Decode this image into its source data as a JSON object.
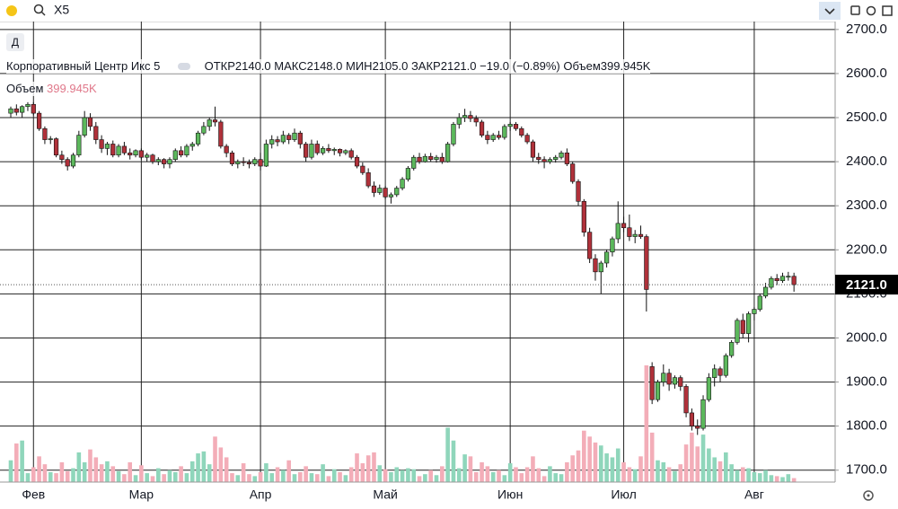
{
  "toolbar": {
    "symbol": "X5",
    "button": "Д"
  },
  "legend": {
    "name": "Корпоративный Центр Икс 5",
    "items": [
      {
        "label": "ОТКР",
        "value": "2140.0"
      },
      {
        "label": "МАКС",
        "value": "2148.0"
      },
      {
        "label": "МИН",
        "value": "2105.0"
      },
      {
        "label": "ЗАКР",
        "value": "2121.0"
      }
    ],
    "change": "−19.0 (−0.89%)",
    "volume_label": "Объем",
    "volume_value": "399.945K"
  },
  "chart_data": {
    "type": "candlestick",
    "categories": [
      null,
      null,
      null,
      null,
      "Фев",
      null,
      null,
      null,
      null,
      null,
      null,
      null,
      null,
      null,
      null,
      null,
      null,
      null,
      null,
      null,
      null,
      null,
      null,
      "Мар",
      null,
      null,
      null,
      null,
      null,
      null,
      null,
      null,
      null,
      null,
      null,
      null,
      null,
      null,
      null,
      null,
      null,
      null,
      null,
      null,
      "Апр",
      null,
      null,
      null,
      null,
      null,
      null,
      null,
      null,
      null,
      null,
      null,
      null,
      null,
      null,
      null,
      null,
      null,
      null,
      null,
      null,
      null,
      "Май",
      null,
      null,
      null,
      null,
      null,
      null,
      null,
      null,
      null,
      null,
      null,
      null,
      null,
      null,
      null,
      null,
      null,
      null,
      null,
      null,
      null,
      "Июн",
      null,
      null,
      null,
      null,
      null,
      null,
      null,
      null,
      null,
      null,
      null,
      null,
      null,
      null,
      null,
      null,
      null,
      null,
      null,
      "Июл",
      null,
      null,
      null,
      null,
      null,
      null,
      null,
      null,
      null,
      null,
      null,
      null,
      null,
      null,
      null,
      null,
      null,
      null,
      null,
      null,
      null,
      null,
      "Авг",
      null,
      null,
      null,
      null,
      null,
      null,
      null
    ],
    "ohlc": [
      [
        2510,
        2525,
        2500,
        2520
      ],
      [
        2520,
        2530,
        2505,
        2512
      ],
      [
        2512,
        2528,
        2500,
        2525
      ],
      [
        2525,
        2535,
        2515,
        2530
      ],
      [
        2530,
        2535,
        2505,
        2510
      ],
      [
        2510,
        2515,
        2470,
        2475
      ],
      [
        2475,
        2480,
        2440,
        2450
      ],
      [
        2450,
        2458,
        2440,
        2452
      ],
      [
        2452,
        2455,
        2410,
        2415
      ],
      [
        2415,
        2425,
        2395,
        2405
      ],
      [
        2405,
        2410,
        2380,
        2390
      ],
      [
        2390,
        2420,
        2385,
        2415
      ],
      [
        2415,
        2470,
        2410,
        2460
      ],
      [
        2460,
        2515,
        2455,
        2500
      ],
      [
        2500,
        2510,
        2470,
        2480
      ],
      [
        2480,
        2490,
        2440,
        2450
      ],
      [
        2450,
        2460,
        2420,
        2430
      ],
      [
        2430,
        2445,
        2415,
        2440
      ],
      [
        2440,
        2448,
        2410,
        2415
      ],
      [
        2415,
        2440,
        2410,
        2435
      ],
      [
        2435,
        2445,
        2415,
        2420
      ],
      [
        2420,
        2430,
        2405,
        2415
      ],
      [
        2415,
        2428,
        2410,
        2425
      ],
      [
        2425,
        2430,
        2405,
        2410
      ],
      [
        2410,
        2420,
        2400,
        2415
      ],
      [
        2415,
        2418,
        2395,
        2400
      ],
      [
        2400,
        2410,
        2392,
        2405
      ],
      [
        2405,
        2408,
        2385,
        2395
      ],
      [
        2395,
        2410,
        2385,
        2405
      ],
      [
        2405,
        2430,
        2400,
        2425
      ],
      [
        2425,
        2435,
        2410,
        2415
      ],
      [
        2415,
        2440,
        2410,
        2435
      ],
      [
        2435,
        2445,
        2425,
        2440
      ],
      [
        2440,
        2470,
        2435,
        2465
      ],
      [
        2465,
        2490,
        2460,
        2480
      ],
      [
        2480,
        2500,
        2470,
        2495
      ],
      [
        2495,
        2525,
        2480,
        2490
      ],
      [
        2490,
        2495,
        2430,
        2435
      ],
      [
        2435,
        2440,
        2410,
        2420
      ],
      [
        2420,
        2425,
        2390,
        2395
      ],
      [
        2395,
        2405,
        2385,
        2400
      ],
      [
        2400,
        2410,
        2390,
        2398
      ],
      [
        2398,
        2405,
        2385,
        2395
      ],
      [
        2395,
        2410,
        2390,
        2405
      ],
      [
        2405,
        2420,
        2380,
        2390
      ],
      [
        2390,
        2450,
        2388,
        2440
      ],
      [
        2440,
        2460,
        2430,
        2450
      ],
      [
        2450,
        2458,
        2435,
        2445
      ],
      [
        2445,
        2470,
        2440,
        2460
      ],
      [
        2460,
        2465,
        2440,
        2450
      ],
      [
        2450,
        2475,
        2445,
        2465
      ],
      [
        2465,
        2470,
        2430,
        2440
      ],
      [
        2440,
        2445,
        2400,
        2410
      ],
      [
        2410,
        2450,
        2405,
        2440
      ],
      [
        2440,
        2448,
        2415,
        2420
      ],
      [
        2420,
        2435,
        2415,
        2430
      ],
      [
        2430,
        2440,
        2420,
        2425
      ],
      [
        2425,
        2432,
        2415,
        2428
      ],
      [
        2428,
        2430,
        2412,
        2420
      ],
      [
        2420,
        2428,
        2415,
        2425
      ],
      [
        2425,
        2430,
        2405,
        2410
      ],
      [
        2410,
        2415,
        2385,
        2390
      ],
      [
        2390,
        2398,
        2370,
        2375
      ],
      [
        2375,
        2385,
        2340,
        2345
      ],
      [
        2345,
        2355,
        2320,
        2330
      ],
      [
        2330,
        2348,
        2325,
        2340
      ],
      [
        2340,
        2345,
        2315,
        2320
      ],
      [
        2320,
        2330,
        2305,
        2325
      ],
      [
        2325,
        2345,
        2320,
        2340
      ],
      [
        2340,
        2365,
        2335,
        2360
      ],
      [
        2360,
        2390,
        2355,
        2385
      ],
      [
        2385,
        2415,
        2380,
        2410
      ],
      [
        2410,
        2420,
        2395,
        2400
      ],
      [
        2400,
        2418,
        2398,
        2412
      ],
      [
        2412,
        2420,
        2400,
        2405
      ],
      [
        2405,
        2415,
        2398,
        2410
      ],
      [
        2410,
        2420,
        2395,
        2400
      ],
      [
        2400,
        2445,
        2398,
        2440
      ],
      [
        2440,
        2490,
        2435,
        2485
      ],
      [
        2485,
        2510,
        2475,
        2500
      ],
      [
        2500,
        2520,
        2490,
        2505
      ],
      [
        2505,
        2515,
        2490,
        2498
      ],
      [
        2498,
        2505,
        2480,
        2490
      ],
      [
        2490,
        2495,
        2455,
        2460
      ],
      [
        2460,
        2470,
        2440,
        2450
      ],
      [
        2450,
        2465,
        2445,
        2460
      ],
      [
        2460,
        2470,
        2450,
        2455
      ],
      [
        2455,
        2485,
        2450,
        2480
      ],
      [
        2480,
        2490,
        2470,
        2485
      ],
      [
        2485,
        2490,
        2470,
        2475
      ],
      [
        2475,
        2480,
        2455,
        2460
      ],
      [
        2460,
        2465,
        2440,
        2445
      ],
      [
        2445,
        2450,
        2400,
        2410
      ],
      [
        2410,
        2420,
        2395,
        2405
      ],
      [
        2405,
        2412,
        2385,
        2400
      ],
      [
        2400,
        2410,
        2395,
        2405
      ],
      [
        2405,
        2415,
        2398,
        2410
      ],
      [
        2410,
        2425,
        2405,
        2420
      ],
      [
        2420,
        2430,
        2390,
        2395
      ],
      [
        2395,
        2400,
        2350,
        2355
      ],
      [
        2355,
        2360,
        2300,
        2310
      ],
      [
        2310,
        2315,
        2230,
        2240
      ],
      [
        2240,
        2250,
        2170,
        2180
      ],
      [
        2180,
        2190,
        2130,
        2150
      ],
      [
        2150,
        2175,
        2100,
        2170
      ],
      [
        2170,
        2200,
        2160,
        2195
      ],
      [
        2195,
        2230,
        2185,
        2225
      ],
      [
        2225,
        2310,
        2215,
        2260
      ],
      [
        2260,
        2275,
        2240,
        2250
      ],
      [
        2250,
        2280,
        2220,
        2230
      ],
      [
        2230,
        2245,
        2215,
        2235
      ],
      [
        2235,
        2255,
        2225,
        2230
      ],
      [
        2230,
        2235,
        2060,
        2110
      ],
      [
        1935,
        1945,
        1850,
        1860
      ],
      [
        1860,
        1905,
        1855,
        1900
      ],
      [
        1900,
        1940,
        1890,
        1920
      ],
      [
        1920,
        1930,
        1880,
        1895
      ],
      [
        1895,
        1915,
        1885,
        1910
      ],
      [
        1910,
        1915,
        1880,
        1890
      ],
      [
        1890,
        1895,
        1820,
        1830
      ],
      [
        1830,
        1840,
        1790,
        1800
      ],
      [
        1800,
        1815,
        1780,
        1795
      ],
      [
        1795,
        1870,
        1790,
        1860
      ],
      [
        1860,
        1920,
        1855,
        1910
      ],
      [
        1910,
        1940,
        1890,
        1930
      ],
      [
        1930,
        1935,
        1900,
        1915
      ],
      [
        1915,
        1965,
        1910,
        1960
      ],
      [
        1960,
        1995,
        1955,
        1990
      ],
      [
        1990,
        2045,
        1985,
        2040
      ],
      [
        2040,
        2055,
        2000,
        2010
      ],
      [
        2010,
        2060,
        1990,
        2055
      ],
      [
        2055,
        2070,
        2040,
        2065
      ],
      [
        2065,
        2100,
        2060,
        2095
      ],
      [
        2095,
        2125,
        2090,
        2115
      ],
      [
        2115,
        2140,
        2110,
        2135
      ],
      [
        2135,
        2145,
        2120,
        2130
      ],
      [
        2130,
        2148,
        2125,
        2140
      ],
      [
        2140,
        2150,
        2130,
        2140
      ],
      [
        2140,
        2148,
        2105,
        2121
      ]
    ],
    "volume": [
      2200,
      3900,
      4200,
      900,
      1500,
      2600,
      1800,
      1000,
      900,
      2000,
      1100,
      1400,
      3000,
      2000,
      3300,
      2500,
      1800,
      2100,
      1600,
      1100,
      800,
      2000,
      700,
      1700,
      900,
      600,
      1400,
      800,
      1200,
      1000,
      1600,
      900,
      2100,
      2900,
      3100,
      1800,
      4600,
      3500,
      2500,
      900,
      700,
      1900,
      800,
      600,
      1000,
      1900,
      900,
      1500,
      1200,
      2200,
      800,
      1000,
      1600,
      900,
      800,
      1800,
      600,
      1300,
      1000,
      700,
      1500,
      2900,
      1900,
      2700,
      3000,
      1700,
      1300,
      1000,
      1500,
      1200,
      1400,
      1300,
      600,
      800,
      1200,
      700,
      1600,
      5500,
      4200,
      1400,
      2800,
      2600,
      1000,
      2000,
      1600,
      1000,
      1200,
      700,
      1900,
      1500,
      900,
      1500,
      2600,
      1400,
      600,
      1600,
      900,
      800,
      2000,
      2700,
      3200,
      5200,
      4600,
      4000,
      3700,
      2900,
      2500,
      3400,
      2000,
      1500,
      1300,
      2600,
      11800,
      5000,
      2200,
      2000,
      1500,
      1100,
      1800,
      3800,
      5000,
      3600,
      4800,
      3400,
      2500,
      2100,
      3000,
      1800,
      1200,
      1500,
      1400,
      1000,
      900,
      1200,
      700,
      600,
      500,
      800,
      399.945
    ],
    "up_color": "#5cb85c",
    "down_color": "#b0313a",
    "up_volume_color": "#8fd6bb",
    "down_volume_color": "#f3adb8",
    "ylim": [
      1673,
      2718
    ],
    "yticks": [
      {
        "value": 1700,
        "label": "1700.0"
      },
      {
        "value": 1800,
        "label": "1800.0"
      },
      {
        "value": 1900,
        "label": "1900.0"
      },
      {
        "value": 2000,
        "label": "2000.0"
      },
      {
        "value": 2100,
        "label": "2100.0"
      },
      {
        "value": 2200,
        "label": "2200.0"
      },
      {
        "value": 2300,
        "label": "2300.0"
      },
      {
        "value": 2400,
        "label": "2400.0"
      },
      {
        "value": 2500,
        "label": "2500.0"
      },
      {
        "value": 2600,
        "label": "2600.0"
      },
      {
        "value": 2700,
        "label": "2700.0"
      }
    ],
    "grid": true,
    "last_price": {
      "value": 2121,
      "label": "2121.0"
    }
  }
}
